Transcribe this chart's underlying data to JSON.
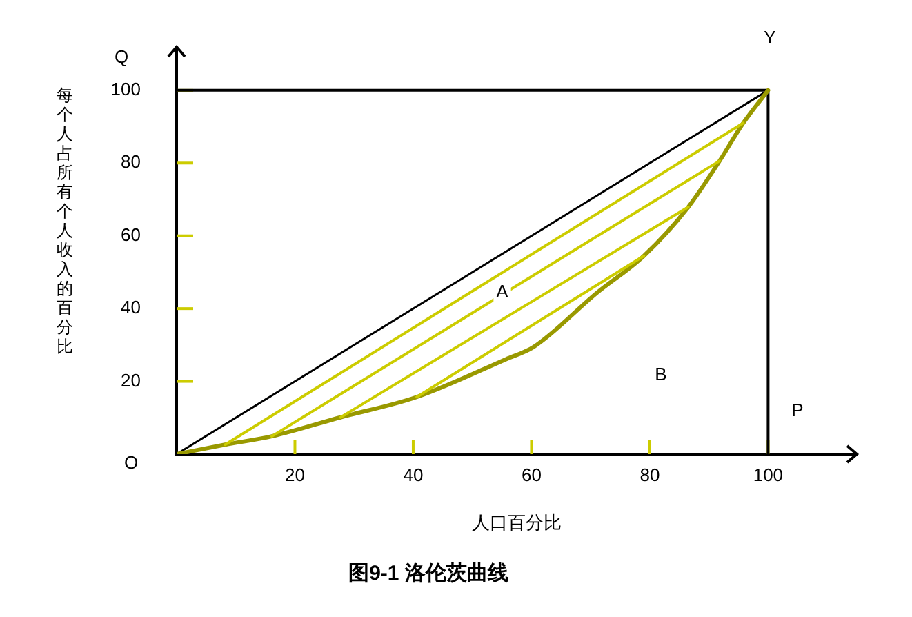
{
  "chart_data": {
    "type": "line",
    "title": "图9-1 洛伦茨曲线",
    "xlabel": "人口百分比",
    "ylabel": "每个人占所有个人收入的百分比",
    "xlim": [
      0,
      115
    ],
    "ylim": [
      0,
      112
    ],
    "xticks": [
      20,
      40,
      60,
      80,
      100
    ],
    "yticks": [
      20,
      40,
      60,
      80,
      100
    ],
    "grid": false,
    "legend": false,
    "marker": "none",
    "line_style": "solid",
    "series": [
      {
        "color": "#000000",
        "x": [
          0,
          100
        ],
        "values": [
          0,
          100
        ]
      },
      {
        "color": "#000000",
        "x": [
          0,
          100,
          100
        ],
        "values": [
          100,
          100,
          0
        ]
      },
      {
        "color": "#999900",
        "x": [
          0,
          8.2,
          16.1,
          27.7,
          40.6,
          55.7,
          60.4,
          71.1,
          79,
          86.5,
          91.8,
          95.8,
          100
        ],
        "values": [
          0,
          2.6,
          4.9,
          10.1,
          15.7,
          26.1,
          29.5,
          44.4,
          54.5,
          67.9,
          80.6,
          91,
          100
        ]
      },
      {
        "color": "#cccc00",
        "x": [
          8.2,
          95.8
        ],
        "values": [
          2.6,
          91
        ]
      },
      {
        "color": "#cccc00",
        "x": [
          16.1,
          91.8
        ],
        "values": [
          4.9,
          80.6
        ]
      },
      {
        "color": "#cccc00",
        "x": [
          27.7,
          86.5
        ],
        "values": [
          10.1,
          67.9
        ]
      },
      {
        "color": "#cccc00",
        "x": [
          40.6,
          79
        ],
        "values": [
          15.7,
          54.5
        ]
      }
    ],
    "annotations": [
      "Q",
      "Y",
      "P",
      "O",
      "A",
      "B"
    ]
  }
}
